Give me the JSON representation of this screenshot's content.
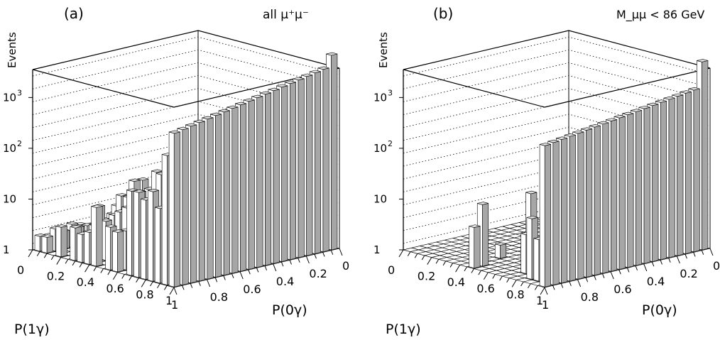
{
  "chart_data": [
    {
      "type": "lego3d",
      "panel_label": "(a)",
      "title": "all μ⁺μ⁻",
      "zlabel": "Events",
      "z_scale": "log",
      "z_ticks": [
        {
          "value": 1,
          "label": "1"
        },
        {
          "value": 10,
          "label": "10"
        },
        {
          "value": 100,
          "label": "10",
          "exp": "2"
        },
        {
          "value": 1000,
          "label": "10",
          "exp": "3"
        }
      ],
      "x_axis": {
        "label": "P(1γ)",
        "ticks": [
          "0",
          "0.2",
          "0.4",
          "0.6",
          "0.8",
          "1"
        ]
      },
      "y_axis": {
        "label": "P(0γ)",
        "ticks": [
          "0",
          "0.2",
          "0.4",
          "0.6",
          "0.8",
          "1"
        ]
      },
      "description_bins": "20x20 bins in P(1γ) x P(0γ); tall row at P(1γ)=1 edge decreasing from ~4000 to ~1500, bulk 1-300 events spread over the plane"
    },
    {
      "type": "lego3d",
      "panel_label": "(b)",
      "title": "M_μμ < 86 GeV",
      "zlabel": "Events",
      "z_scale": "log",
      "z_ticks": [
        {
          "value": 1,
          "label": "1"
        },
        {
          "value": 10,
          "label": "10"
        },
        {
          "value": 100,
          "label": "10",
          "exp": "2"
        },
        {
          "value": 1000,
          "label": "10",
          "exp": "3"
        }
      ],
      "x_axis": {
        "label": "P(1γ)",
        "ticks": [
          "0",
          "0.2",
          "0.4",
          "0.6",
          "0.8",
          "1"
        ]
      },
      "y_axis": {
        "label": "P(0γ)",
        "ticks": [
          "0",
          "0.2",
          "0.4",
          "0.6",
          "0.8",
          "1"
        ]
      },
      "description_bins": "20x20 bins; tall row at P(1γ)=1 edge from ~1500 to ~600, sparse small bins 1-40 elsewhere"
    }
  ]
}
